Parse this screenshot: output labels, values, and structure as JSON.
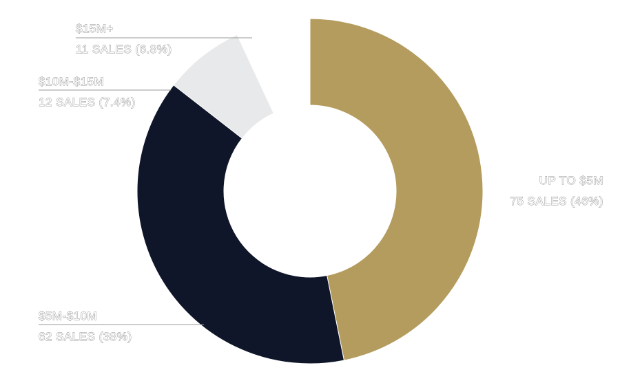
{
  "chart_data": {
    "type": "pie",
    "title": "",
    "slices": [
      {
        "category": "UP TO $5M",
        "label": "75 SALES (46%)",
        "value": 46,
        "color": "#b49c5e"
      },
      {
        "category": "$5M-$10M",
        "label": "62 SALES (38%)",
        "value": 38,
        "color": "#101629"
      },
      {
        "category": "$10M-$15M",
        "label": "12 SALES (7.4%)",
        "value": 7.4,
        "color": "#e8e9ea"
      },
      {
        "category": "$15M+",
        "label": "11 SALES (6.8%)",
        "value": 6.8,
        "color": "#ffffff"
      }
    ]
  }
}
